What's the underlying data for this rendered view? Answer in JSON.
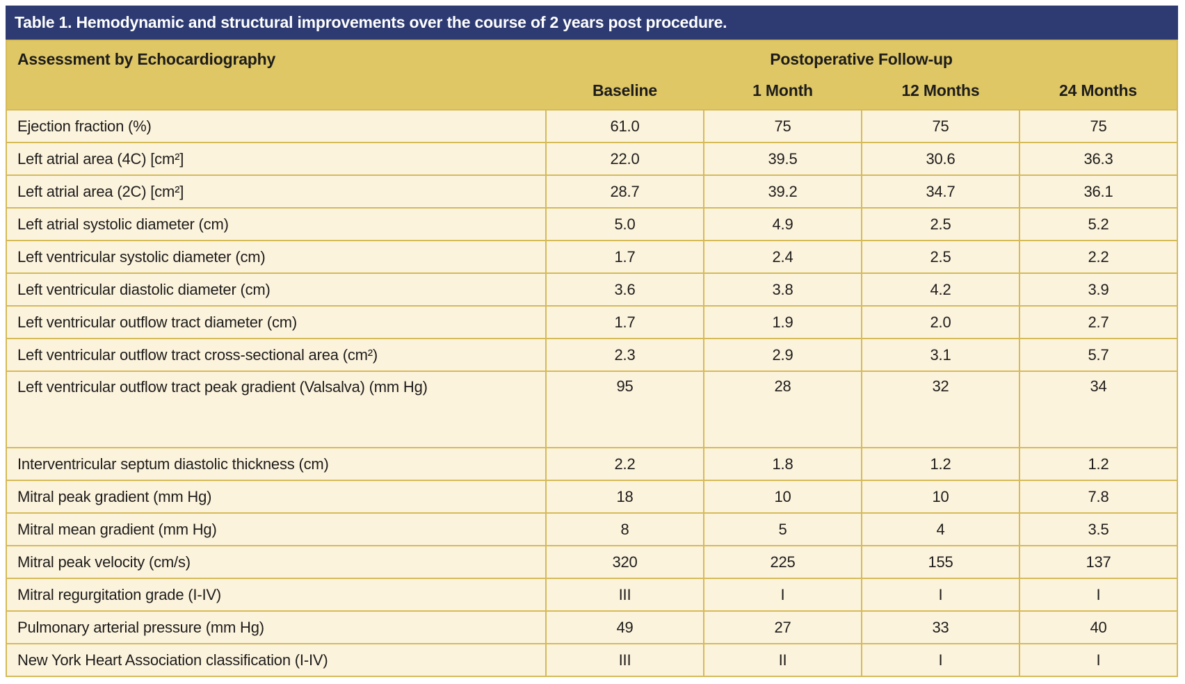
{
  "title": "Table 1. Hemodynamic and structural improvements over the course of 2 years post procedure.",
  "header": {
    "assessment_label": "Assessment by Echocardiography",
    "followup_label": "Postoperative Follow-up",
    "columns": [
      "Baseline",
      "1 Month",
      "12 Months",
      "24 Months"
    ]
  },
  "rows": [
    {
      "label": "Ejection fraction (%)",
      "values": [
        "61.0",
        "75",
        "75",
        "75"
      ]
    },
    {
      "label": "Left atrial area (4C) [cm²]",
      "values": [
        "22.0",
        "39.5",
        "30.6",
        "36.3"
      ]
    },
    {
      "label": "Left atrial area (2C) [cm²]",
      "values": [
        "28.7",
        "39.2",
        "34.7",
        "36.1"
      ]
    },
    {
      "label": "Left atrial systolic diameter (cm)",
      "values": [
        "5.0",
        "4.9",
        "2.5",
        "5.2"
      ]
    },
    {
      "label": "Left ventricular systolic diameter (cm)",
      "values": [
        "1.7",
        "2.4",
        "2.5",
        "2.2"
      ]
    },
    {
      "label": "Left ventricular diastolic diameter (cm)",
      "values": [
        "3.6",
        "3.8",
        "4.2",
        "3.9"
      ]
    },
    {
      "label": "Left ventricular outflow tract diameter (cm)",
      "values": [
        "1.7",
        "1.9",
        "2.0",
        "2.7"
      ]
    },
    {
      "label": "Left ventricular outflow tract cross-sectional area (cm²)",
      "values": [
        "2.3",
        "2.9",
        "3.1",
        "5.7"
      ]
    },
    {
      "label": "Left ventricular outflow tract peak gradient (Valsalva) (mm Hg)",
      "values": [
        "95",
        "28",
        "32",
        "34"
      ],
      "tall": true
    },
    {
      "label": "Interventricular septum diastolic thickness (cm)",
      "values": [
        "2.2",
        "1.8",
        "1.2",
        "1.2"
      ]
    },
    {
      "label": "Mitral peak gradient (mm Hg)",
      "values": [
        "18",
        "10",
        "10",
        "7.8"
      ]
    },
    {
      "label": "Mitral mean gradient (mm Hg)",
      "values": [
        "8",
        "5",
        "4",
        "3.5"
      ]
    },
    {
      "label": "Mitral peak velocity (cm/s)",
      "values": [
        "320",
        "225",
        "155",
        "137"
      ]
    },
    {
      "label": "Mitral regurgitation grade (I-IV)",
      "values": [
        "III",
        "I",
        "I",
        "I"
      ]
    },
    {
      "label": "Pulmonary arterial pressure (mm Hg)",
      "values": [
        "49",
        "27",
        "33",
        "40"
      ]
    },
    {
      "label": "New York Heart Association classification (I-IV)",
      "values": [
        "III",
        "II",
        "I",
        "I"
      ]
    }
  ],
  "colors": {
    "title_bar_bg": "#2d3b72",
    "title_text": "#ffffff",
    "header_bg": "#dfc766",
    "body_bg": "#fcf3dd",
    "border": "#d5ba58",
    "text": "#1d1c1a",
    "page_bg": "#ffffff"
  }
}
